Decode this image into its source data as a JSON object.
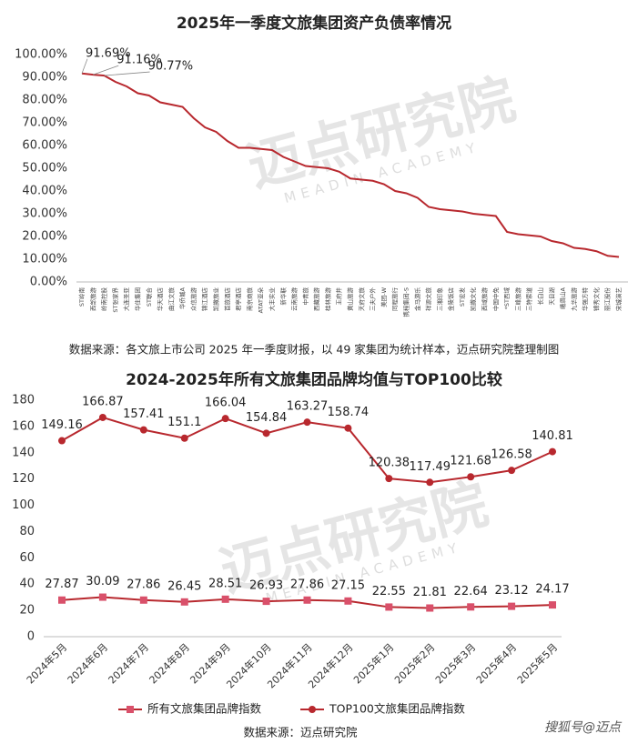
{
  "chart_data": [
    {
      "type": "line",
      "title": "2025年一季度文旅集团资产负债率情况",
      "categories": [
        "ST岭南",
        "西部旅游",
        "岭南控股",
        "ST张家界",
        "大连圣亚",
        "华住集团",
        "ST联合",
        "华天酒店",
        "曲江文旅",
        "华侨城A",
        "众信旅游",
        "锦江酒店",
        "凯撒旅业",
        "首旅酒店",
        "君亭酒店",
        "南京商旅",
        "ATAT亚朵",
        "大丰实业",
        "新华联",
        "云南旅游",
        "中青旅",
        "西藏旅游",
        "桂林旅游",
        "王府井",
        "黄山旅游",
        "天府文旅",
        "三夫户外",
        "美团-W",
        "同程旅行",
        "携程集团-S",
        "金马游乐",
        "祥源文旅",
        "三湘印象",
        "金陵饭店",
        "ST宏发",
        "凯撒文化",
        "西域旅游",
        "中国中免",
        "*ST西域",
        "三峰旅游",
        "三特索道",
        "长白山",
        "天目湖",
        "峨眉山A",
        "九华旅游",
        "华强方特",
        "锦秀文化",
        "丽江股份",
        "宋城演艺"
      ],
      "series": [
        {
          "name": "资产负债率",
          "color": "#b8282e",
          "values": [
            91.69,
            91.16,
            90.77,
            88,
            86,
            83,
            82,
            79,
            78,
            77,
            72,
            68,
            66,
            62,
            59,
            59,
            58.5,
            58,
            55,
            53,
            51,
            50.5,
            50,
            48.5,
            45.5,
            45,
            44.5,
            43,
            40,
            39,
            37,
            33,
            32,
            31.5,
            31,
            30,
            29.5,
            29,
            22,
            21,
            20.5,
            20,
            18,
            17,
            15,
            14.5,
            13.5,
            11.5,
            11
          ],
          "value_labels": [
            "91.69%",
            "91.16%",
            "90.77%",
            null,
            null,
            null,
            null,
            null,
            null,
            null,
            null,
            null,
            null,
            null,
            null,
            null,
            null,
            null,
            null,
            null,
            null,
            null,
            null,
            null,
            null,
            null,
            null,
            null,
            null,
            null,
            null,
            null,
            null,
            null,
            null,
            null,
            null,
            null,
            null,
            null,
            null,
            null,
            null,
            null,
            null,
            null,
            null,
            null,
            null
          ]
        }
      ],
      "ylim": [
        0,
        100
      ],
      "yticks": [
        {
          "value": 0,
          "label": "0.00%"
        },
        {
          "value": 10,
          "label": "10.00%"
        },
        {
          "value": 20,
          "label": "20.00%"
        },
        {
          "value": 30,
          "label": "30.00%"
        },
        {
          "value": 40,
          "label": "40.00%"
        },
        {
          "value": 50,
          "label": "50.00%"
        },
        {
          "value": 60,
          "label": "60.00%"
        },
        {
          "value": 70,
          "label": "70.00%"
        },
        {
          "value": 80,
          "label": "80.00%"
        },
        {
          "value": 90,
          "label": "90.00%"
        },
        {
          "value": 100,
          "label": "100.00%"
        }
      ],
      "grid": false,
      "legend": false,
      "source": "数据来源：各文旅上市公司 2025 年一季度财报，以 49 家集团为统计样本，迈点研究院整理制图"
    },
    {
      "type": "line",
      "title": "2024-2025年所有文旅集团品牌均值与TOP100比较",
      "categories": [
        "2024年5月",
        "2024年6月",
        "2024年7月",
        "2024年8月",
        "2024年9月",
        "2024年10月",
        "2024年11月",
        "2024年12月",
        "2025年1月",
        "2025年2月",
        "2025年3月",
        "2025年4月",
        "2025年5月"
      ],
      "series": [
        {
          "name": "所有文旅集团品牌指数",
          "color": "#d9506a",
          "line_color": "#b8282e",
          "marker": "square",
          "values": [
            27.87,
            30.09,
            27.86,
            26.45,
            28.51,
            26.93,
            27.86,
            27.15,
            22.55,
            21.81,
            22.64,
            23.12,
            24.17
          ]
        },
        {
          "name": "TOP100文旅集团品牌指数",
          "color": "#b8282e",
          "line_color": "#b8282e",
          "marker": "circle",
          "values": [
            149.16,
            166.87,
            157.41,
            151.1,
            166.04,
            154.84,
            163.27,
            158.74,
            120.38,
            117.49,
            121.68,
            126.58,
            140.81
          ]
        }
      ],
      "ylim": [
        0,
        180
      ],
      "yticks": [
        0,
        20,
        40,
        60,
        80,
        100,
        120,
        140,
        160,
        180
      ],
      "grid": false,
      "legend": "bottom",
      "source": "数据来源：迈点研究院"
    }
  ],
  "watermark": {
    "cn": "迈点研究院",
    "en": "MEADIN ACADEMY"
  },
  "footer": "搜狐号@迈点"
}
